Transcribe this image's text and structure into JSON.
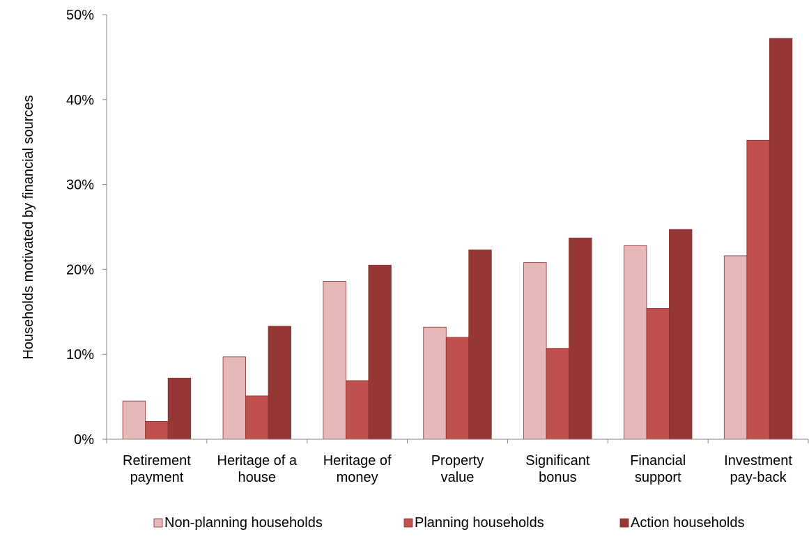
{
  "chart_data": {
    "type": "bar",
    "title": "",
    "xlabel": "",
    "ylabel": "Households motivated by financial sources",
    "ylim": [
      0,
      0.5
    ],
    "yticks": [
      0,
      0.1,
      0.2,
      0.3,
      0.4,
      0.5
    ],
    "ytick_labels": [
      "0%",
      "10%",
      "20%",
      "30%",
      "40%",
      "50%"
    ],
    "grid": false,
    "legend_position": "bottom",
    "categories": [
      [
        "Retirement",
        "payment"
      ],
      [
        "Heritage of a",
        "house"
      ],
      [
        "Heritage of",
        "money"
      ],
      [
        "Property",
        "value"
      ],
      [
        "Significant",
        "bonus"
      ],
      [
        "Financial",
        "support"
      ],
      [
        "Investment",
        "pay-back"
      ]
    ],
    "series": [
      {
        "name": "Non-planning households",
        "color": "#e6b9b8",
        "values": [
          0.045,
          0.097,
          0.186,
          0.132,
          0.208,
          0.228,
          0.216
        ]
      },
      {
        "name": "Planning households",
        "color": "#c0504d",
        "values": [
          0.021,
          0.051,
          0.069,
          0.12,
          0.107,
          0.154,
          0.352
        ]
      },
      {
        "name": "Action households",
        "color": "#953735",
        "values": [
          0.072,
          0.133,
          0.205,
          0.223,
          0.237,
          0.247,
          0.472
        ]
      }
    ]
  }
}
